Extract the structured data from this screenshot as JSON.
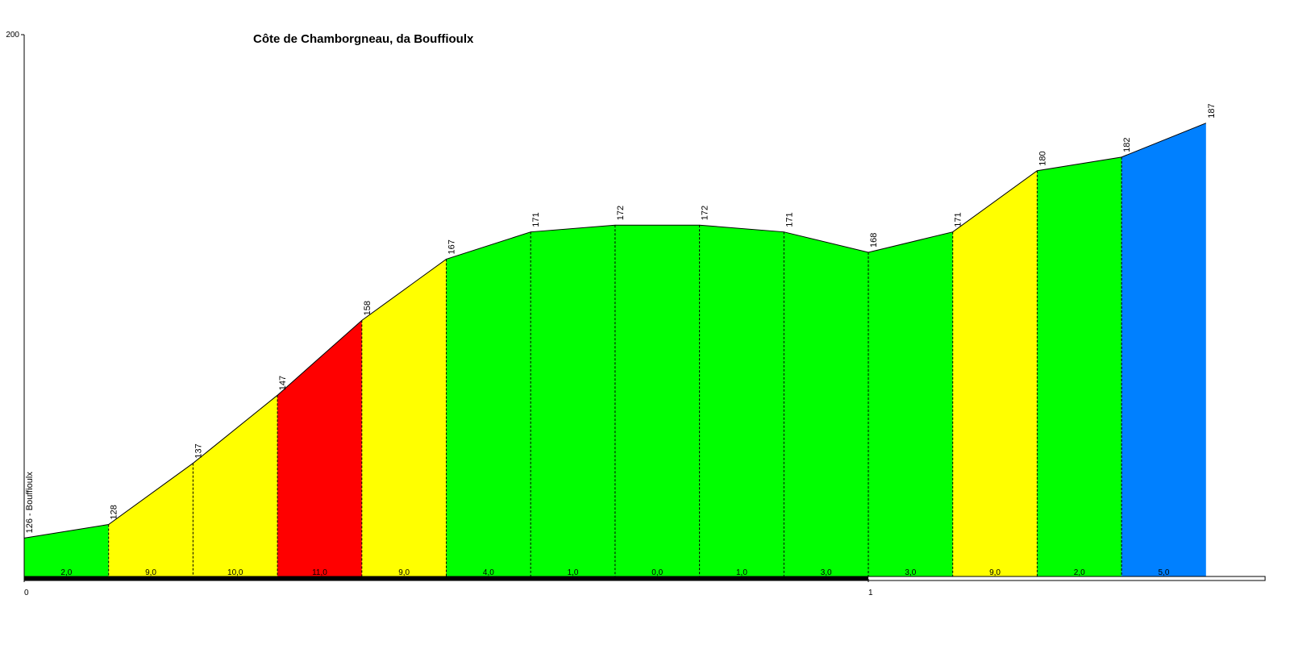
{
  "chart_data": {
    "type": "area",
    "title": "Côte de Chamborgneau, da Bouffioulx",
    "x": [
      0,
      0.1,
      0.2,
      0.3,
      0.4,
      0.5,
      0.6,
      0.7,
      0.8,
      0.9,
      1,
      1.1,
      1.2,
      1.3,
      1.4
    ],
    "series": [
      {
        "values": [
          126,
          128,
          137,
          147,
          158,
          167,
          171,
          172,
          172,
          171,
          168,
          171,
          180,
          182,
          187
        ],
        "value_labels": [
          "126 - Bouffioulx",
          "128",
          "137",
          "147",
          "158",
          "167",
          "171",
          "172",
          "172",
          "171",
          "168",
          "171",
          "180",
          "182",
          "187"
        ]
      }
    ],
    "gradients": [
      2.0,
      9.0,
      10.0,
      11.0,
      9.0,
      4.0,
      1.0,
      0.0,
      1.0,
      3.0,
      3.0,
      9.0,
      2.0,
      5.0
    ],
    "gradient_labels": [
      "2,0",
      "9,0",
      "10,0",
      "11,0",
      "9,0",
      "4,0",
      "1,0",
      "0,0",
      "1,0",
      "3,0",
      "3,0",
      "9,0",
      "2,0",
      "5,0"
    ],
    "segment_colors": [
      "#00ff00",
      "#ffff00",
      "#ffff00",
      "#ff0000",
      "#ffff00",
      "#00ff00",
      "#00ff00",
      "#00ff00",
      "#00ff00",
      "#00ff00",
      "#00ff00",
      "#ffff00",
      "#00ff00",
      "#0080ff"
    ],
    "xlim": [
      0,
      1.47
    ],
    "xticks": [
      0,
      1
    ],
    "ylim": [
      120,
      200
    ],
    "yticks": [
      200
    ]
  }
}
